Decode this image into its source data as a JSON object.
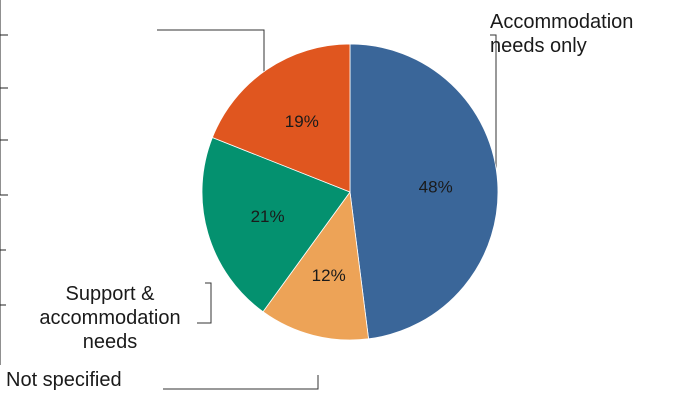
{
  "chart_data": {
    "type": "pie",
    "title": "",
    "slices": [
      {
        "name": "Accommodation needs only",
        "label_lines": [
          "Accommodation",
          "needs only"
        ],
        "value": 48,
        "display": "48%",
        "color": "#3a6699"
      },
      {
        "name": "Not specified",
        "label_lines": [
          "Not specified"
        ],
        "value": 12,
        "display": "12%",
        "color": "#eda357"
      },
      {
        "name": "Support & accommodation needs",
        "label_lines": [
          "Support &",
          "accommodation",
          "needs"
        ],
        "value": 21,
        "display": "21%",
        "color": "#04916f"
      },
      {
        "name": "",
        "label_lines": [],
        "value": 19,
        "display": "19%",
        "color": "#e0561f"
      }
    ],
    "legend": "none",
    "grid": false
  }
}
